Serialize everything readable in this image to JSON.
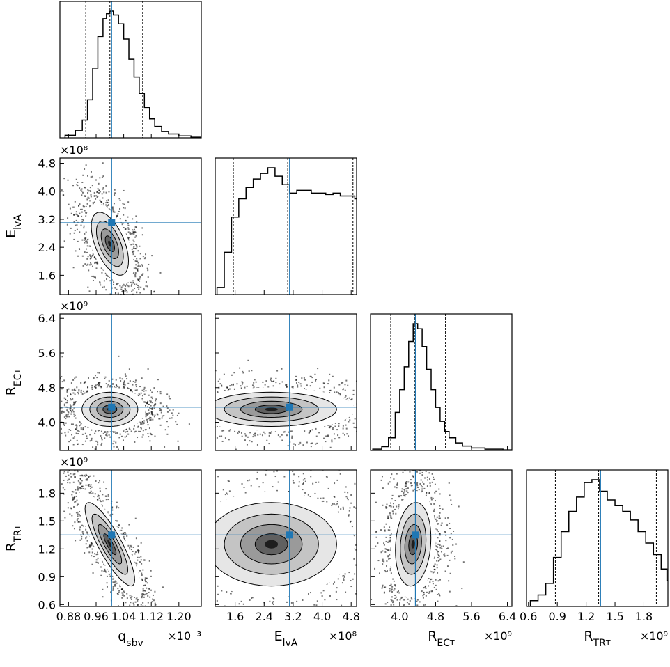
{
  "chart_data": {
    "type": "corner",
    "parameters": [
      {
        "key": "q",
        "label_main": "q",
        "label_sub": "sbv",
        "label_subsub": "",
        "range": [
          0.855,
          1.265
        ],
        "ticks": [
          0.88,
          0.96,
          1.04,
          1.12,
          1.2
        ],
        "tick_labels": [
          "0.88",
          "0.96",
          "1.04",
          "1.12",
          "1.20"
        ],
        "multiplier": "×10⁻³",
        "truth": 1.005,
        "quantiles": [
          0.93,
          1.0,
          1.095
        ],
        "peak": 1.0
      },
      {
        "key": "E",
        "label_main": "E",
        "label_sub": "lvA",
        "label_subsub": "",
        "range": [
          1.05,
          4.95
        ],
        "ticks": [
          1.6,
          2.4,
          3.2,
          4.0,
          4.8
        ],
        "tick_labels": [
          "1.6",
          "2.4",
          "3.2",
          "4.0",
          "4.8"
        ],
        "multiplier": "×10⁸",
        "truth": 3.1,
        "quantiles": [
          1.55,
          3.05,
          4.85
        ],
        "peak": 2.45
      },
      {
        "key": "REC",
        "label_main": "R",
        "label_sub": "EC",
        "label_subsub": "T",
        "range": [
          3.35,
          6.5
        ],
        "ticks": [
          4.0,
          4.8,
          5.6,
          6.4
        ],
        "tick_labels": [
          "4.0",
          "4.8",
          "5.6",
          "6.4"
        ],
        "multiplier": "×10⁹",
        "truth": 4.35,
        "quantiles": [
          3.8,
          4.33,
          5.02
        ],
        "peak": 4.3
      },
      {
        "key": "RTR",
        "label_main": "R",
        "label_sub": "TR",
        "label_subsub": "T",
        "range": [
          0.58,
          2.05
        ],
        "ticks": [
          0.6,
          0.9,
          1.2,
          1.5,
          1.8
        ],
        "tick_labels": [
          "0.6",
          "0.9",
          "1.2",
          "1.5",
          "1.8"
        ],
        "multiplier": "×10⁹",
        "truth": 1.35,
        "quantiles": [
          0.88,
          1.33,
          1.93
        ],
        "peak": 1.22
      }
    ],
    "histograms": {
      "q": {
        "x": [
          0.87,
          0.9,
          0.92,
          0.935,
          0.95,
          0.965,
          0.98,
          0.99,
          1.0,
          1.01,
          1.025,
          1.04,
          1.055,
          1.07,
          1.085,
          1.1,
          1.115,
          1.13,
          1.15,
          1.17,
          1.2,
          1.235
        ],
        "y": [
          0.02,
          0.06,
          0.14,
          0.3,
          0.55,
          0.8,
          0.94,
          0.98,
          1.0,
          0.97,
          0.9,
          0.78,
          0.62,
          0.48,
          0.35,
          0.24,
          0.15,
          0.09,
          0.05,
          0.03,
          0.015,
          0.005
        ]
      },
      "E": {
        "x": [
          1.1,
          1.3,
          1.5,
          1.7,
          1.9,
          2.1,
          2.3,
          2.5,
          2.7,
          2.9,
          3.1,
          3.3,
          3.5,
          3.7,
          3.9,
          4.1,
          4.3,
          4.5,
          4.7,
          4.9
        ],
        "y": [
          0.05,
          0.3,
          0.55,
          0.68,
          0.76,
          0.82,
          0.86,
          0.9,
          0.84,
          0.78,
          0.72,
          0.74,
          0.74,
          0.72,
          0.72,
          0.71,
          0.72,
          0.7,
          0.7,
          0.68
        ]
      },
      "REC": {
        "x": [
          3.4,
          3.6,
          3.75,
          3.9,
          4.0,
          4.1,
          4.2,
          4.3,
          4.4,
          4.5,
          4.6,
          4.7,
          4.8,
          4.9,
          5.0,
          5.1,
          5.25,
          5.4,
          5.6,
          5.9,
          6.3
        ],
        "y": [
          0.01,
          0.03,
          0.1,
          0.3,
          0.48,
          0.66,
          0.86,
          1.0,
          0.96,
          0.82,
          0.64,
          0.48,
          0.34,
          0.23,
          0.15,
          0.1,
          0.06,
          0.035,
          0.02,
          0.01,
          0.005
        ]
      },
      "RTR": {
        "x": [
          0.62,
          0.7,
          0.78,
          0.86,
          0.94,
          1.02,
          1.1,
          1.18,
          1.26,
          1.34,
          1.42,
          1.5,
          1.58,
          1.66,
          1.74,
          1.82,
          1.9,
          1.98,
          2.04
        ],
        "y": [
          0.04,
          0.08,
          0.16,
          0.34,
          0.52,
          0.66,
          0.76,
          0.86,
          0.88,
          0.8,
          0.74,
          0.7,
          0.66,
          0.6,
          0.52,
          0.44,
          0.36,
          0.26,
          0.18
        ]
      }
    },
    "density": [
      {
        "x": "q",
        "y": "E",
        "center": [
          1.0,
          2.5
        ],
        "spread": [
          0.03,
          0.5
        ],
        "rho": -0.55
      },
      {
        "x": "q",
        "y": "REC",
        "center": [
          1.0,
          4.3
        ],
        "spread": [
          0.045,
          0.22
        ],
        "rho": 0.0
      },
      {
        "x": "E",
        "y": "REC",
        "center": [
          2.6,
          4.3
        ],
        "spread": [
          1.0,
          0.22
        ],
        "rho": 0.0
      },
      {
        "x": "q",
        "y": "RTR",
        "center": [
          1.0,
          1.25
        ],
        "spread": [
          0.04,
          0.25
        ],
        "rho": -0.85
      },
      {
        "x": "E",
        "y": "RTR",
        "center": [
          2.6,
          1.25
        ],
        "spread": [
          1.0,
          0.25
        ],
        "rho": 0.0
      },
      {
        "x": "REC",
        "y": "RTR",
        "center": [
          4.3,
          1.25
        ],
        "spread": [
          0.22,
          0.25
        ],
        "rho": 0.15
      }
    ],
    "truth_color": "#1f77b4",
    "contour_color": "#000000"
  }
}
